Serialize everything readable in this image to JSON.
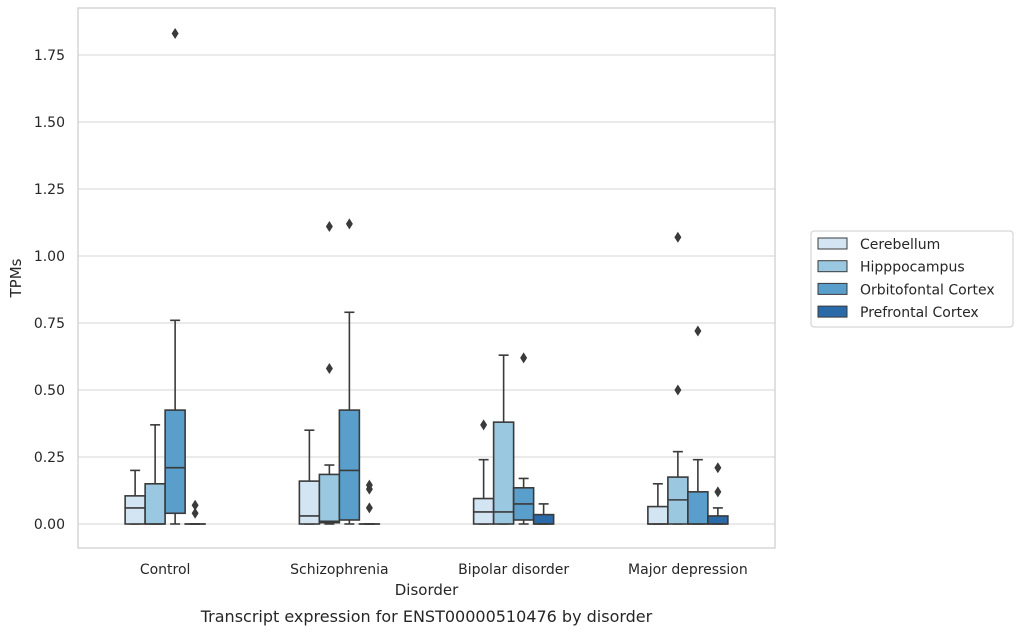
{
  "chart_data": {
    "type": "box",
    "title": "",
    "caption": "Transcript expression for ENST00000510476 by disorder",
    "xlabel": "Disorder",
    "ylabel": "TPMs",
    "ylim": [
      -0.09,
      1.94
    ],
    "yticks": [
      "0.00",
      "0.25",
      "0.50",
      "0.75",
      "1.00",
      "1.25",
      "1.50",
      "1.75"
    ],
    "grid": true,
    "legend_position": "right",
    "categories": [
      "Control",
      "Schizophrenia",
      "Bipolar disorder",
      "Major depression"
    ],
    "series": [
      {
        "name": "Cerebellum",
        "color": "#d3e4f3",
        "boxes": [
          {
            "whisker_low": 0.0,
            "q1": 0.0,
            "median": 0.06,
            "q3": 0.105,
            "whisker_high": 0.2,
            "outliers": []
          },
          {
            "whisker_low": 0.0,
            "q1": 0.0,
            "median": 0.03,
            "q3": 0.16,
            "whisker_high": 0.35,
            "outliers": []
          },
          {
            "whisker_low": 0.0,
            "q1": 0.0,
            "median": 0.045,
            "q3": 0.095,
            "whisker_high": 0.24,
            "outliers": [
              0.37
            ]
          },
          {
            "whisker_low": 0.0,
            "q1": 0.0,
            "median": 0.0,
            "q3": 0.065,
            "whisker_high": 0.15,
            "outliers": []
          }
        ]
      },
      {
        "name": "Hipppocampus",
        "color": "#9ac8e0",
        "boxes": [
          {
            "whisker_low": 0.0,
            "q1": 0.0,
            "median": 0.0,
            "q3": 0.15,
            "whisker_high": 0.37,
            "outliers": []
          },
          {
            "whisker_low": 0.0,
            "q1": 0.005,
            "median": 0.01,
            "q3": 0.185,
            "whisker_high": 0.22,
            "outliers": [
              0.58,
              1.11
            ]
          },
          {
            "whisker_low": 0.0,
            "q1": 0.0,
            "median": 0.045,
            "q3": 0.38,
            "whisker_high": 0.63,
            "outliers": []
          },
          {
            "whisker_low": 0.0,
            "q1": 0.0,
            "median": 0.09,
            "q3": 0.175,
            "whisker_high": 0.27,
            "outliers": [
              0.5,
              1.07
            ]
          }
        ]
      },
      {
        "name": "Orbitofontal Cortex",
        "color": "#5a9fcb",
        "boxes": [
          {
            "whisker_low": 0.0,
            "q1": 0.04,
            "median": 0.21,
            "q3": 0.425,
            "whisker_high": 0.76,
            "outliers": [
              1.83
            ]
          },
          {
            "whisker_low": 0.0,
            "q1": 0.015,
            "median": 0.2,
            "q3": 0.425,
            "whisker_high": 0.79,
            "outliers": [
              1.12
            ]
          },
          {
            "whisker_low": 0.0,
            "q1": 0.015,
            "median": 0.075,
            "q3": 0.135,
            "whisker_high": 0.17,
            "outliers": [
              0.62
            ]
          },
          {
            "whisker_low": 0.0,
            "q1": 0.0,
            "median": 0.0,
            "q3": 0.12,
            "whisker_high": 0.24,
            "outliers": [
              0.72
            ]
          }
        ]
      },
      {
        "name": "Prefrontal Cortex",
        "color": "#2b6aa8",
        "boxes": [
          {
            "whisker_low": 0.0,
            "q1": 0.0,
            "median": 0.0,
            "q3": 0.0,
            "whisker_high": 0.0,
            "outliers": [
              0.04,
              0.07
            ]
          },
          {
            "whisker_low": 0.0,
            "q1": 0.0,
            "median": 0.0,
            "q3": 0.0,
            "whisker_high": 0.0,
            "outliers": [
              0.06,
              0.13,
              0.145
            ]
          },
          {
            "whisker_low": 0.0,
            "q1": 0.0,
            "median": 0.0,
            "q3": 0.035,
            "whisker_high": 0.075,
            "outliers": []
          },
          {
            "whisker_low": 0.0,
            "q1": 0.0,
            "median": 0.0,
            "q3": 0.03,
            "whisker_high": 0.06,
            "outliers": [
              0.12,
              0.21
            ]
          }
        ]
      }
    ]
  }
}
